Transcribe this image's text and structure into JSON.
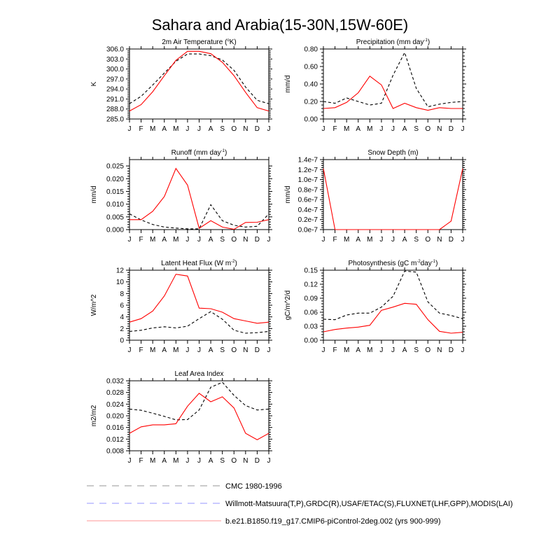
{
  "title": "Sahara and Arabia(15-30N,15W-60E)",
  "colors": {
    "model": "#ff0000",
    "cmc": "#000000",
    "obs": "#0000ff",
    "legend_cmc": "#aaaaaa",
    "legend_obs": "#aaaaff",
    "legend_model": "#ffaaaa"
  },
  "legend": [
    {
      "label": "CMC 1980-1996",
      "style": "dashed",
      "color": "#aaaaaa"
    },
    {
      "label": "Willmott-Matsuura(T,P),GRDC(R),USAF/ETAC(S),FLUXNET(LHF,GPP),MODIS(LAI)",
      "style": "dashed",
      "color": "#aaaaff"
    },
    {
      "label": "b.e21.B1850.f19_g17.CMIP6-piControl-2deg.002 (yrs 900-999)",
      "style": "solid",
      "color": "#ffaaaa"
    }
  ],
  "chart_data": [
    {
      "type": "line",
      "title": {
        "pre": "2m Air Temperature (",
        "sup": "o",
        "post": "K)"
      },
      "ylabel": "K",
      "categories": [
        "J",
        "F",
        "M",
        "A",
        "M",
        "J",
        "J",
        "A",
        "S",
        "O",
        "N",
        "D",
        "J"
      ],
      "ylim": [
        285,
        306
      ],
      "yticks": [
        285,
        288,
        291,
        294,
        297,
        300,
        303,
        306
      ],
      "yticklabels": [
        "285.0",
        "288.0",
        "291.0",
        "294.0",
        "297.0",
        "300.0",
        "303.0",
        "306.0"
      ],
      "series": [
        {
          "style": "dashed",
          "color": "#000000",
          "values": [
            289.6,
            291.8,
            295.2,
            298.8,
            302.3,
            304.5,
            304.5,
            304.0,
            302.7,
            299.6,
            294.6,
            290.6,
            289.6
          ]
        },
        {
          "style": "solid",
          "color": "#ff0000",
          "values": [
            287.4,
            289.3,
            293.2,
            298.0,
            302.6,
            305.3,
            305.3,
            304.6,
            302.0,
            298.0,
            293.0,
            288.4,
            287.4
          ]
        }
      ]
    },
    {
      "type": "line",
      "title": {
        "pre": "Precipitation (mm day",
        "sup": "-1",
        "post": ")"
      },
      "ylabel": "mm/d",
      "categories": [
        "J",
        "F",
        "M",
        "A",
        "M",
        "J",
        "J",
        "A",
        "S",
        "O",
        "N",
        "D",
        "J"
      ],
      "ylim": [
        0,
        0.8
      ],
      "yticks": [
        0,
        0.2,
        0.4,
        0.6,
        0.8
      ],
      "yticklabels": [
        "0.00",
        "0.20",
        "0.40",
        "0.60",
        "0.80"
      ],
      "series": [
        {
          "style": "dashed",
          "color": "#000000",
          "values": [
            0.2,
            0.18,
            0.24,
            0.2,
            0.16,
            0.18,
            0.5,
            0.76,
            0.35,
            0.14,
            0.17,
            0.19,
            0.2
          ]
        },
        {
          "style": "solid",
          "color": "#ff0000",
          "values": [
            0.12,
            0.13,
            0.19,
            0.3,
            0.49,
            0.39,
            0.12,
            0.18,
            0.13,
            0.1,
            0.13,
            0.12,
            0.12
          ]
        }
      ]
    },
    {
      "type": "line",
      "title": {
        "pre": "Runoff (mm day",
        "sup": "-1",
        "post": ")"
      },
      "ylabel": "mm/d",
      "categories": [
        "J",
        "F",
        "M",
        "A",
        "M",
        "J",
        "J",
        "A",
        "S",
        "O",
        "N",
        "D",
        "J"
      ],
      "ylim": [
        0,
        0.0275
      ],
      "yticks": [
        0,
        0.005,
        0.01,
        0.015,
        0.02,
        0.025
      ],
      "yticklabels": [
        "0.000",
        "0.005",
        "0.010",
        "0.015",
        "0.020",
        "0.025"
      ],
      "series": [
        {
          "style": "dashed",
          "color": "#000000",
          "values": [
            0.0062,
            0.0038,
            0.002,
            0.001,
            0.0006,
            0.0003,
            0.0003,
            0.0098,
            0.0035,
            0.0017,
            0.001,
            0.0013,
            0.0062
          ]
        },
        {
          "style": "solid",
          "color": "#ff0000",
          "values": [
            0.0039,
            0.0039,
            0.0072,
            0.013,
            0.024,
            0.0175,
            0.0005,
            0.0035,
            0.001,
            0.0001,
            0.0028,
            0.0029,
            0.0039
          ]
        }
      ]
    },
    {
      "type": "line",
      "title": {
        "pre": "Snow Depth (m)",
        "sup": "",
        "post": ""
      },
      "ylabel": "mm/d",
      "categories": [
        "J",
        "F",
        "M",
        "A",
        "M",
        "J",
        "J",
        "A",
        "S",
        "O",
        "N",
        "D",
        "J"
      ],
      "ylim": [
        0,
        1.4e-07
      ],
      "yticks": [
        0,
        2e-08,
        4e-08,
        6e-08,
        8e-08,
        1e-07,
        1.2e-07,
        1.4e-07
      ],
      "yticklabels": [
        "0.0e-7",
        "0.2e-7",
        "0.4e-7",
        "0.6e-7",
        "0.8e-7",
        "1.0e-7",
        "1.2e-7",
        "1.4e-7"
      ],
      "series": [
        {
          "style": "solid",
          "color": "#ff0000",
          "values": [
            1.22e-07,
            0,
            0,
            0,
            0,
            0,
            0,
            0,
            0,
            0,
            0,
            1.7e-08,
            1.22e-07
          ]
        }
      ]
    },
    {
      "type": "line",
      "title": {
        "pre": "Latent Heat Flux (W m",
        "sup": "-2",
        "post": ")"
      },
      "ylabel": "W/m^2",
      "categories": [
        "J",
        "F",
        "M",
        "A",
        "M",
        "J",
        "J",
        "A",
        "S",
        "O",
        "N",
        "D",
        "J"
      ],
      "ylim": [
        0,
        12
      ],
      "yticks": [
        0,
        2,
        4,
        6,
        8,
        10,
        12
      ],
      "yticklabels": [
        "0",
        "2",
        "4",
        "6",
        "8",
        "10",
        "12"
      ],
      "series": [
        {
          "style": "dashed",
          "color": "#000000",
          "values": [
            1.5,
            1.7,
            2.1,
            2.3,
            2.1,
            2.4,
            3.7,
            4.9,
            3.6,
            1.7,
            1.2,
            1.3,
            1.5
          ]
        },
        {
          "style": "solid",
          "color": "#ff0000",
          "values": [
            3.1,
            3.7,
            5.0,
            7.6,
            11.3,
            11.0,
            5.5,
            5.4,
            4.8,
            3.7,
            3.3,
            2.9,
            3.1
          ]
        }
      ]
    },
    {
      "type": "line",
      "title": {
        "pre": "Photosynthesis (gC m",
        "sup": "-2",
        "post": "day",
        "sup2": "-1",
        "post2": ")"
      },
      "ylabel": "gC/m^2/d",
      "categories": [
        "J",
        "F",
        "M",
        "A",
        "M",
        "J",
        "J",
        "A",
        "S",
        "O",
        "N",
        "D",
        "J"
      ],
      "ylim": [
        0,
        0.15
      ],
      "yticks": [
        0,
        0.03,
        0.06,
        0.09,
        0.12,
        0.15
      ],
      "yticklabels": [
        "0.00",
        "0.03",
        "0.06",
        "0.09",
        "0.12",
        "0.15"
      ],
      "series": [
        {
          "style": "dashed",
          "color": "#000000",
          "values": [
            0.045,
            0.044,
            0.054,
            0.058,
            0.058,
            0.071,
            0.094,
            0.148,
            0.146,
            0.082,
            0.058,
            0.053,
            0.046
          ]
        },
        {
          "style": "solid",
          "color": "#ff0000",
          "values": [
            0.018,
            0.023,
            0.026,
            0.028,
            0.032,
            0.064,
            0.071,
            0.079,
            0.077,
            0.044,
            0.019,
            0.015,
            0.017
          ]
        }
      ]
    },
    {
      "type": "line",
      "title": {
        "pre": "Leaf Area Index",
        "sup": "",
        "post": ""
      },
      "ylabel": "m2/m2",
      "categories": [
        "J",
        "F",
        "M",
        "A",
        "M",
        "J",
        "J",
        "A",
        "S",
        "O",
        "N",
        "D",
        "J"
      ],
      "ylim": [
        0.008,
        0.032
      ],
      "yticks": [
        0.008,
        0.012,
        0.016,
        0.02,
        0.024,
        0.028,
        0.032
      ],
      "yticklabels": [
        "0.008",
        "0.012",
        "0.016",
        "0.020",
        "0.024",
        "0.028",
        "0.032"
      ],
      "series": [
        {
          "style": "dashed",
          "color": "#000000",
          "values": [
            0.0223,
            0.0219,
            0.0209,
            0.0198,
            0.0186,
            0.0187,
            0.022,
            0.0298,
            0.0315,
            0.027,
            0.0235,
            0.022,
            0.0223
          ]
        },
        {
          "style": "solid",
          "color": "#ff0000",
          "values": [
            0.014,
            0.0162,
            0.0169,
            0.0169,
            0.0173,
            0.0233,
            0.0277,
            0.0248,
            0.0265,
            0.0227,
            0.014,
            0.0118,
            0.014
          ]
        }
      ]
    }
  ]
}
